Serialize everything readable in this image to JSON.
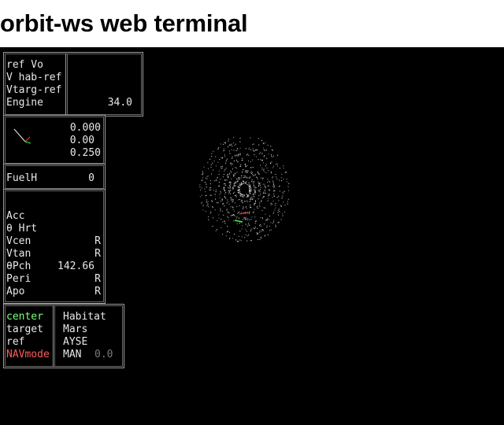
{
  "page": {
    "title": "orbit-ws web terminal"
  },
  "ref_panel": {
    "lines": [
      "ref Vo",
      "V hab-ref",
      "Vtarg-ref",
      "Engine"
    ],
    "engine_value": "34.0"
  },
  "attitude_panel": {
    "values": [
      "0.000",
      "0.00",
      "0.250"
    ]
  },
  "fuel_panel": {
    "label": "FuelH",
    "value": "0"
  },
  "stats_panel": {
    "rows": [
      {
        "label": "Acc",
        "value": ""
      },
      {
        "label": "θ Hrt",
        "value": ""
      },
      {
        "label": "Vcen",
        "value": "R"
      },
      {
        "label": "Vtan",
        "value": "R"
      },
      {
        "label": "θPch",
        "value": "142.66"
      },
      {
        "label": "Peri",
        "value": "R"
      },
      {
        "label": "Apo",
        "value": "R"
      }
    ]
  },
  "nav_panel": {
    "rows": [
      {
        "label": "center",
        "value": "Habitat"
      },
      {
        "label": "target",
        "value": "Mars"
      },
      {
        "label": "ref",
        "value": "AYSE"
      },
      {
        "label": "NAVmode",
        "value": "MAN"
      }
    ],
    "nav_extra": "0.0"
  },
  "colors": {
    "background": "#000000",
    "text": "#e8e8e8",
    "center_label": "#7dff7d",
    "navmode_label": "#ff5a5a",
    "dim_value": "#7a7a7a",
    "border": "#9a9a9a"
  }
}
